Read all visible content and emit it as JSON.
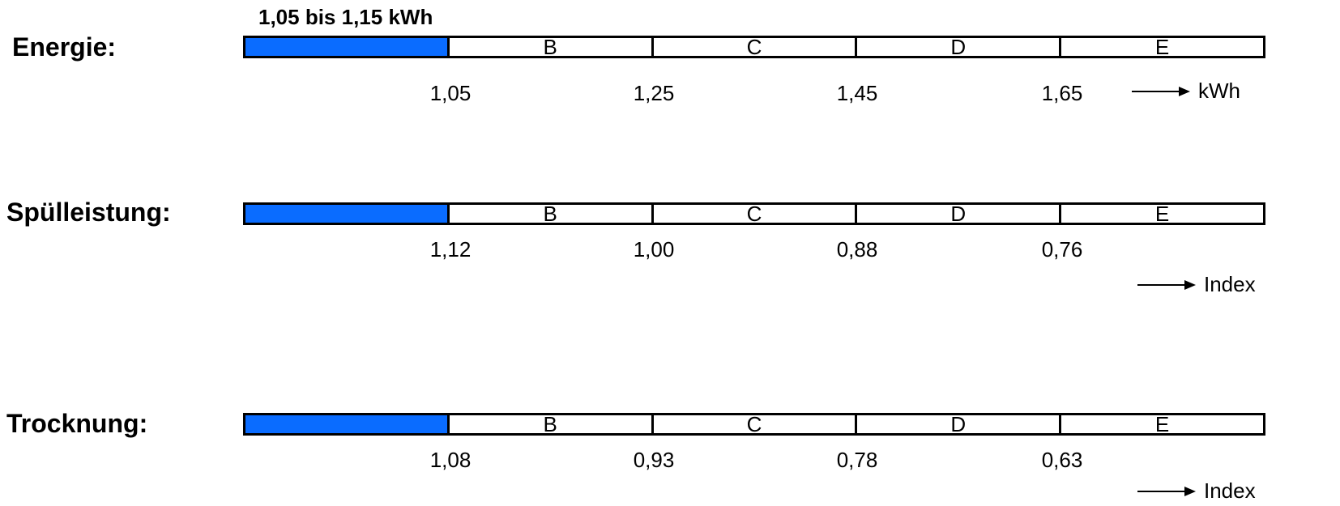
{
  "highlight": "1,05 bis 1,15 kWh",
  "fill_color": "#0a6cff",
  "rows": [
    {
      "label": "Energie:",
      "classes": [
        "",
        "B",
        "C",
        "D",
        "E"
      ],
      "ticks": [
        "1,05",
        "1,25",
        "1,45",
        "1,65"
      ],
      "unit": "kWh"
    },
    {
      "label": "Spülleistung:",
      "classes": [
        "",
        "B",
        "C",
        "D",
        "E"
      ],
      "ticks": [
        "1,12",
        "1,00",
        "0,88",
        "0,76"
      ],
      "unit": "Index"
    },
    {
      "label": "Trocknung:",
      "classes": [
        "",
        "B",
        "C",
        "D",
        "E"
      ],
      "ticks": [
        "1,08",
        "0,93",
        "0,78",
        "0,63"
      ],
      "unit": "Index"
    }
  ]
}
